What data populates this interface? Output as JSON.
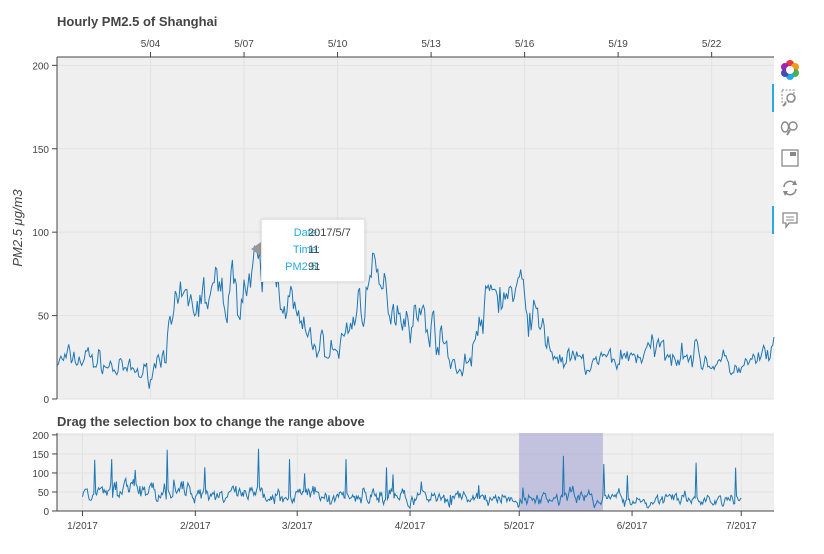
{
  "chart_data": [
    {
      "type": "line",
      "title": "Hourly PM2.5 of Shanghai",
      "ylabel": "PM2.5 μg/m3",
      "xlabel": "",
      "x_axis_position": "top",
      "xlim": [
        "2017-05-01",
        "2017-05-24"
      ],
      "ylim": [
        0,
        205
      ],
      "x_tick_labels": [
        "5/04",
        "5/07",
        "5/10",
        "5/13",
        "5/16",
        "5/19",
        "5/22"
      ],
      "y_tick_labels": [
        "0",
        "50",
        "100",
        "150",
        "200"
      ],
      "grid": true,
      "color": "#1f77b4",
      "series": [
        {
          "x": [
            "2017-05-01",
            "2017-05-02",
            "2017-05-03",
            "2017-05-04",
            "2017-05-05",
            "2017-05-06",
            "2017-05-07",
            "2017-05-08",
            "2017-05-09",
            "2017-05-10",
            "2017-05-11",
            "2017-05-12",
            "2017-05-13",
            "2017-05-14",
            "2017-05-15",
            "2017-05-16",
            "2017-05-17",
            "2017-05-18",
            "2017-05-19",
            "2017-05-20",
            "2017-05-21",
            "2017-05-22",
            "2017-05-23",
            "2017-05-24"
          ],
          "values": [
            22,
            25,
            17,
            15,
            55,
            62,
            68,
            78,
            35,
            28,
            70,
            55,
            45,
            15,
            65,
            60,
            25,
            20,
            25,
            28,
            30,
            22,
            18,
            28
          ]
        }
      ]
    },
    {
      "type": "line",
      "title": "Drag the selection box to change the range above",
      "xlim": [
        "2016-12-25",
        "2017-07-10"
      ],
      "ylim": [
        0,
        205
      ],
      "x_tick_labels": [
        "1/2017",
        "2/2017",
        "3/2017",
        "4/2017",
        "5/2017",
        "6/2017",
        "7/2017"
      ],
      "y_tick_labels": [
        "0",
        "50",
        "100",
        "150",
        "200"
      ],
      "grid": true,
      "color": "#1f77b4",
      "selection": {
        "start": "2017-05-01",
        "end": "2017-05-24",
        "color": "#9d9bd0"
      },
      "series": [
        {
          "x": [
            "2017-01-01",
            "2017-01-15",
            "2017-02-01",
            "2017-02-15",
            "2017-03-01",
            "2017-03-15",
            "2017-04-01",
            "2017-04-15",
            "2017-05-01",
            "2017-05-15",
            "2017-06-01",
            "2017-06-15",
            "2017-07-01"
          ],
          "values": [
            45,
            55,
            50,
            40,
            45,
            40,
            40,
            35,
            25,
            40,
            30,
            30,
            28
          ]
        }
      ]
    }
  ],
  "tooltip": {
    "date_label": "Date:",
    "date_value": "2017/5/7",
    "time_label": "Time:",
    "time_value": "11",
    "pm_label": "PM2.5:",
    "pm_value": "91"
  },
  "toolbar": {
    "logo": "bokeh-logo-icon",
    "tools": [
      "box-zoom-icon",
      "wheel-zoom-icon",
      "save-icon",
      "reset-icon",
      "hover-icon"
    ]
  }
}
